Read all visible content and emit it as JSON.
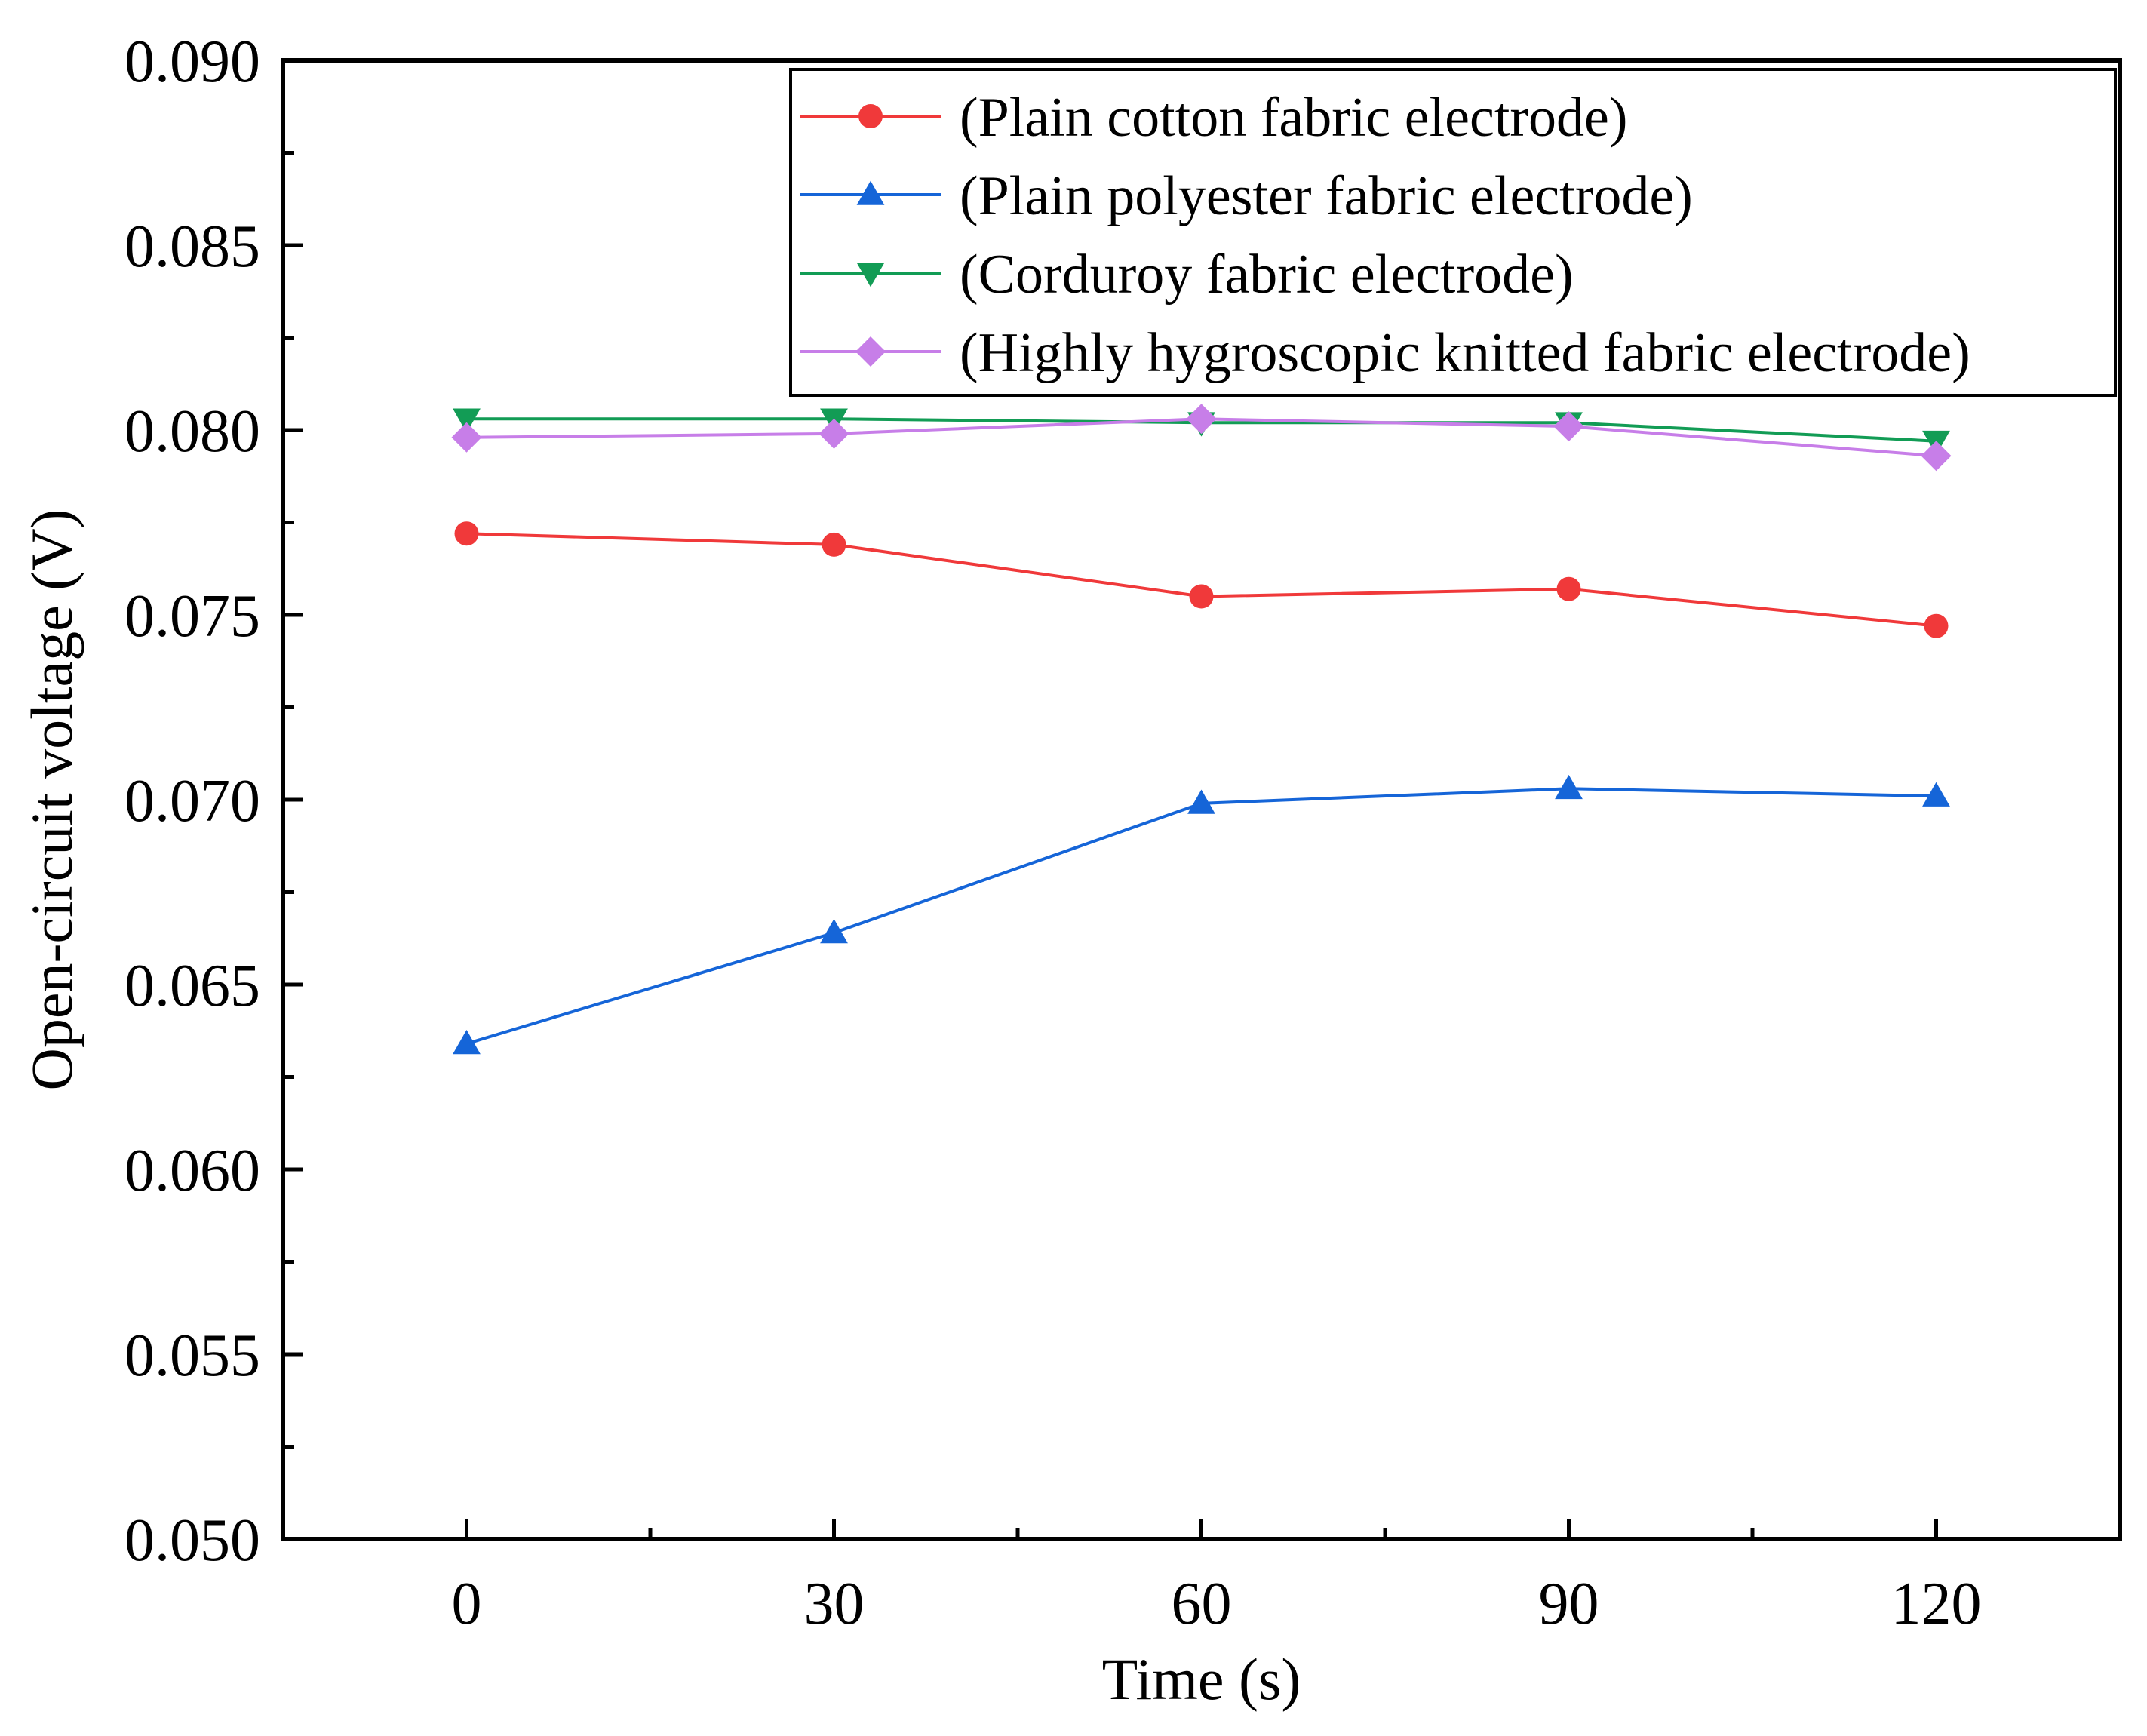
{
  "chart_data": {
    "type": "line",
    "title": "",
    "xlabel": "Time (s)",
    "ylabel": "Open-circuit voltage (V)",
    "x": [
      0,
      30,
      60,
      90,
      120
    ],
    "xlim": [
      -15,
      135
    ],
    "ylim": [
      0.05,
      0.09
    ],
    "xticks": [
      0,
      30,
      60,
      90,
      120
    ],
    "xtick_labels": [
      "0",
      "30",
      "60",
      "90",
      "120"
    ],
    "yticks": [
      0.05,
      0.055,
      0.06,
      0.065,
      0.07,
      0.075,
      0.08,
      0.085,
      0.09
    ],
    "ytick_labels": [
      "0.050",
      "0.055",
      "0.060",
      "0.065",
      "0.070",
      "0.075",
      "0.080",
      "0.085",
      "0.090"
    ],
    "grid": false,
    "legend_position": "top-right",
    "series": [
      {
        "name": "(Plain cotton fabric electrode)",
        "color": "#f0393a",
        "marker": "circle",
        "values": [
          0.0772,
          0.0769,
          0.0755,
          0.0757,
          0.0747
        ]
      },
      {
        "name": "(Plain polyester fabric electrode)",
        "color": "#1565d8",
        "marker": "triangle-up",
        "values": [
          0.0634,
          0.0664,
          0.0699,
          0.0703,
          0.0701
        ]
      },
      {
        "name": "(Corduroy fabric electrode)",
        "color": "#129c55",
        "marker": "triangle-down",
        "values": [
          0.0803,
          0.0803,
          0.0802,
          0.0802,
          0.0797
        ]
      },
      {
        "name": "(Highly hygroscopic knitted fabric electrode)",
        "color": "#c77ee8",
        "marker": "diamond",
        "values": [
          0.0798,
          0.0799,
          0.0803,
          0.0801,
          0.0793
        ]
      }
    ]
  }
}
